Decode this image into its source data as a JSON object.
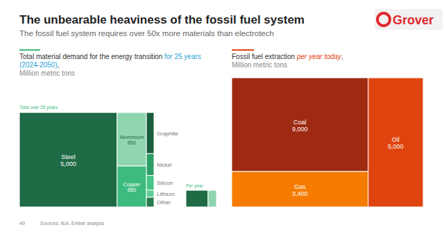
{
  "header": {
    "title": "The unbearable heaviness of the fossil fuel system",
    "subtitle": "The fossil fuel system requires over 50x more materials than electrotech"
  },
  "logo": "Grover",
  "footer": {
    "page": "49",
    "source": "Sources: IEA; Ember analysis"
  },
  "chart_data": [
    {
      "type": "treemap",
      "title": [
        "Total material demand for the energy transition ",
        "for 25 years (2024-2050)",
        ","
      ],
      "subtitle": "Million metric tons",
      "annotations": [
        "Total over 25 years"
      ],
      "categories": [
        "Steel",
        "Aluminium",
        "Copper",
        "Graphite",
        "Nickel",
        "Silicon",
        "Lithium",
        "Other"
      ],
      "values": [
        5000,
        850,
        650,
        170,
        90,
        60,
        30,
        40
      ],
      "value_labels": [
        "5,000",
        "850",
        "650",
        null,
        null,
        null,
        null,
        null
      ],
      "colors": [
        "#1e6b45",
        "#8fd5b0",
        "#3dbb7e",
        "#1b5e3c",
        "#2e9e66",
        "#47c486",
        "#5fcf97",
        "#2a7a50"
      ],
      "data_labels": true,
      "per_year": {
        "label": "Per year",
        "values": [
          200,
          76
        ],
        "colors": [
          "#1e6b45",
          "#8fd5b0"
        ]
      }
    },
    {
      "type": "treemap",
      "title": [
        "Fossil fuel extraction ",
        "per year today",
        ","
      ],
      "subtitle": "Million metric tons",
      "categories": [
        "Coal",
        "Gas",
        "Oil"
      ],
      "values": [
        9000,
        3400,
        5000
      ],
      "value_labels": [
        "9,000",
        "3,400",
        "5,000"
      ],
      "colors": [
        "#9e2a12",
        "#f57c00",
        "#e0440e"
      ],
      "data_labels": true
    }
  ]
}
